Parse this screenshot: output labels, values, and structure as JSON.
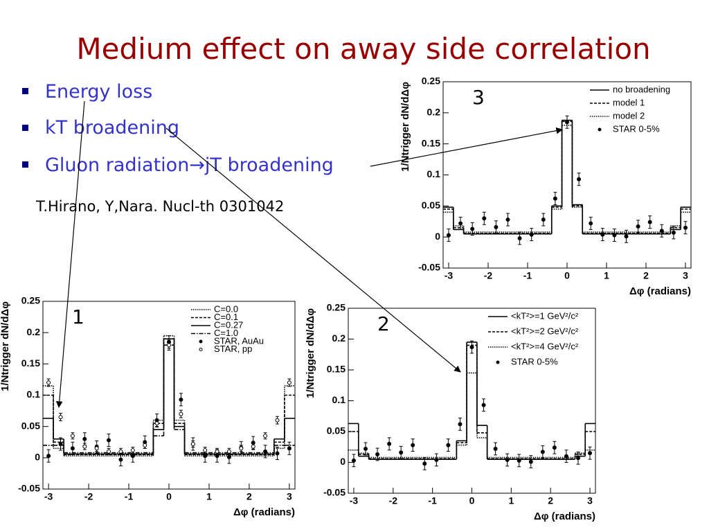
{
  "slide": {
    "title": "Medium effect on away side correlation",
    "bullets": [
      "Energy loss",
      "kT broadening",
      "Gluon radiation→jT broadening"
    ],
    "citation": "T.Hirano, Y,Nara. Nucl-th 0301042"
  },
  "chart_data": [
    {
      "type": "histogram",
      "annotation": "1",
      "ylabel": "1/Ntrigger dN/dΔφ",
      "xlabel": "Δφ (radians)",
      "xlim": [
        -3.14,
        3.14
      ],
      "ylim": [
        -0.05,
        0.25
      ],
      "xticks": [
        -3,
        -2,
        -1,
        0,
        1,
        2,
        3
      ],
      "yticks": [
        -0.05,
        0,
        0.05,
        0.1,
        0.15,
        0.2,
        0.25
      ],
      "legend": "upper right",
      "bins": [
        -3.14,
        -2.88,
        -2.62,
        -0.39,
        -0.13,
        0.13,
        0.39,
        2.62,
        2.88,
        3.14
      ],
      "series": [
        {
          "name": "C=0.0",
          "style": "dotted",
          "color": "#000000",
          "values": [
            0.115,
            0.015,
            0.003,
            0.06,
            0.195,
            0.06,
            0.003,
            0.015,
            0.115
          ]
        },
        {
          "name": "C=0.1",
          "style": "dashed",
          "color": "#000000",
          "values": [
            0.1,
            0.025,
            0.005,
            0.055,
            0.19,
            0.055,
            0.005,
            0.025,
            0.1
          ]
        },
        {
          "name": "C=0.27",
          "style": "solid",
          "color": "#000000",
          "values": [
            0.063,
            0.03,
            0.006,
            0.045,
            0.19,
            0.05,
            0.006,
            0.03,
            0.063
          ]
        },
        {
          "name": "C=1.0",
          "style": "dashdot",
          "color": "#000000",
          "values": [
            0.02,
            0.02,
            0.008,
            0.035,
            0.18,
            0.045,
            0.008,
            0.02,
            0.02
          ]
        },
        {
          "name": "STAR, AuAu",
          "marker": "filled",
          "color": "#000000",
          "x": [
            -3,
            -2.7,
            -2.4,
            -2.1,
            -1.8,
            -1.5,
            -1.2,
            -0.9,
            -0.6,
            -0.3,
            0,
            0.3,
            0.6,
            0.9,
            1.2,
            1.5,
            1.8,
            2.1,
            2.4,
            2.7,
            3
          ],
          "values": [
            0.003,
            0.022,
            0.015,
            0.03,
            0.017,
            0.028,
            -0.003,
            0.003,
            0.025,
            0.06,
            0.185,
            0.093,
            0.022,
            0.003,
            0.003,
            0.001,
            0.016,
            0.024,
            0.01,
            0.007,
            0.015
          ],
          "errors": [
            0.01,
            0.01,
            0.01,
            0.01,
            0.01,
            0.01,
            0.01,
            0.01,
            0.01,
            0.01,
            0.01,
            0.01,
            0.01,
            0.01,
            0.01,
            0.01,
            0.01,
            0.01,
            0.01,
            0.01,
            0.01
          ]
        },
        {
          "name": "STAR, pp",
          "marker": "open",
          "color": "#000000",
          "x": [
            -3,
            -2.7,
            -2.4,
            -2.1,
            -1.8,
            -1.5,
            -1.2,
            -0.9,
            -0.6,
            -0.3,
            0,
            0.3,
            0.6,
            0.9,
            1.2,
            1.5,
            1.8,
            2.1,
            2.4,
            2.7,
            3
          ],
          "values": [
            0.12,
            0.065,
            0.035,
            0.018,
            0.015,
            0.01,
            0.01,
            0.012,
            0.02,
            0.055,
            0.18,
            0.07,
            0.022,
            0.012,
            0.01,
            0.01,
            0.015,
            0.018,
            0.035,
            0.06,
            0.12
          ],
          "errors": [
            0.006,
            0.006,
            0.005,
            0.005,
            0.005,
            0.005,
            0.005,
            0.005,
            0.005,
            0.006,
            0.008,
            0.006,
            0.005,
            0.005,
            0.005,
            0.005,
            0.005,
            0.005,
            0.005,
            0.006,
            0.006
          ]
        }
      ]
    },
    {
      "type": "histogram",
      "annotation": "2",
      "ylabel": "1/Ntrigger dN/dΔφ",
      "xlabel": "Δφ (radians)",
      "xlim": [
        -3.14,
        3.14
      ],
      "ylim": [
        -0.05,
        0.25
      ],
      "xticks": [
        -3,
        -2,
        -1,
        0,
        1,
        2,
        3
      ],
      "yticks": [
        -0.05,
        0,
        0.05,
        0.1,
        0.15,
        0.2,
        0.25
      ],
      "legend": "upper right",
      "bins": [
        -3.14,
        -2.88,
        -2.62,
        -0.39,
        -0.13,
        0.13,
        0.39,
        2.62,
        2.88,
        3.14
      ],
      "series": [
        {
          "name": "<kT²>=1 GeV²/c²",
          "style": "solid",
          "color": "#000000",
          "values": [
            0.063,
            0.01,
            0.005,
            0.035,
            0.195,
            0.06,
            0.005,
            0.01,
            0.063
          ]
        },
        {
          "name": "<kT²>=2 GeV²/c²",
          "style": "dashed",
          "color": "#000000",
          "values": [
            0.05,
            0.013,
            0.006,
            0.032,
            0.19,
            0.048,
            0.006,
            0.013,
            0.05
          ]
        },
        {
          "name": "<kT²>=4 GeV²/c²",
          "style": "dotted",
          "color": "#000000",
          "values": [
            0.02,
            0.015,
            0.008,
            0.028,
            0.145,
            0.04,
            0.008,
            0.015,
            0.02
          ]
        },
        {
          "name": "STAR 0-5%",
          "marker": "filled",
          "color": "#000000",
          "x": [
            -3,
            -2.7,
            -2.4,
            -2.1,
            -1.8,
            -1.5,
            -1.2,
            -0.9,
            -0.6,
            -0.3,
            0,
            0.3,
            0.6,
            0.9,
            1.2,
            1.5,
            1.8,
            2.1,
            2.4,
            2.7,
            3
          ],
          "values": [
            0.003,
            0.022,
            0.013,
            0.03,
            0.016,
            0.028,
            -0.002,
            0.004,
            0.028,
            0.062,
            0.187,
            0.093,
            0.022,
            0.004,
            0.003,
            0.001,
            0.017,
            0.024,
            0.01,
            0.007,
            0.015
          ],
          "errors": [
            0.01,
            0.01,
            0.01,
            0.01,
            0.01,
            0.01,
            0.01,
            0.01,
            0.01,
            0.01,
            0.01,
            0.01,
            0.01,
            0.01,
            0.01,
            0.01,
            0.01,
            0.01,
            0.01,
            0.01,
            0.01
          ]
        }
      ]
    },
    {
      "type": "histogram",
      "annotation": "3",
      "ylabel": "1/Ntrigger dN/dΔφ",
      "xlabel": "Δφ (radians)",
      "xlim": [
        -3.14,
        3.14
      ],
      "ylim": [
        -0.05,
        0.25
      ],
      "xticks": [
        -3,
        -2,
        -1,
        0,
        1,
        2,
        3
      ],
      "yticks": [
        -0.05,
        0,
        0.05,
        0.1,
        0.15,
        0.2,
        0.25
      ],
      "legend": "upper right",
      "bins": [
        -3.14,
        -2.88,
        -2.62,
        -0.39,
        -0.13,
        0.13,
        0.39,
        2.62,
        2.88,
        3.14
      ],
      "series": [
        {
          "name": "no broadening",
          "style": "solid",
          "color": "#000000",
          "values": [
            0.048,
            0.012,
            0.005,
            0.05,
            0.188,
            0.052,
            0.005,
            0.012,
            0.048
          ]
        },
        {
          "name": "model 1",
          "style": "dashed",
          "color": "#000000",
          "values": [
            0.045,
            0.015,
            0.006,
            0.048,
            0.186,
            0.05,
            0.006,
            0.015,
            0.045
          ]
        },
        {
          "name": "model 2",
          "style": "dotted",
          "color": "#000000",
          "values": [
            0.04,
            0.018,
            0.008,
            0.045,
            0.18,
            0.048,
            0.008,
            0.018,
            0.04
          ]
        },
        {
          "name": "STAR 0-5%",
          "marker": "filled",
          "color": "#000000",
          "x": [
            -3,
            -2.7,
            -2.4,
            -2.1,
            -1.8,
            -1.5,
            -1.2,
            -0.9,
            -0.6,
            -0.3,
            0,
            0.3,
            0.6,
            0.9,
            1.2,
            1.5,
            1.8,
            2.1,
            2.4,
            2.7,
            3
          ],
          "values": [
            0.003,
            0.022,
            0.013,
            0.03,
            0.016,
            0.028,
            -0.002,
            0.004,
            0.028,
            0.062,
            0.185,
            0.093,
            0.022,
            0.004,
            0.003,
            0.001,
            0.017,
            0.024,
            0.01,
            0.007,
            0.015
          ],
          "errors": [
            0.01,
            0.01,
            0.01,
            0.01,
            0.01,
            0.01,
            0.01,
            0.01,
            0.01,
            0.01,
            0.01,
            0.01,
            0.01,
            0.01,
            0.01,
            0.01,
            0.01,
            0.01,
            0.01,
            0.01,
            0.01
          ]
        }
      ]
    }
  ]
}
